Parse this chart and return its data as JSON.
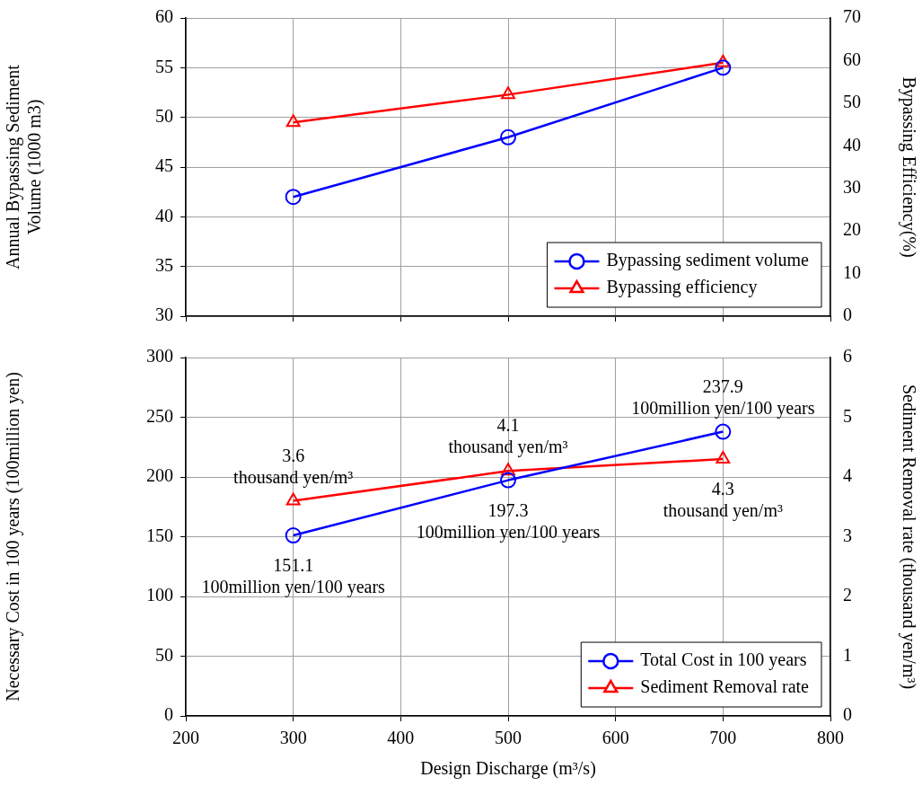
{
  "chart_data": [
    {
      "type": "line",
      "x": [
        300,
        500,
        700
      ],
      "xlim": [
        200,
        800
      ],
      "xticks": [
        200,
        300,
        400,
        500,
        600,
        700,
        800
      ],
      "tick_labels": "y",
      "ylabel": "Annual Bypassing Sediment Volume (1000 m3)",
      "y2label": "Bypassing Efficiency(%)",
      "ylim": [
        30,
        60
      ],
      "yticks": [
        30,
        35,
        40,
        45,
        50,
        55,
        60
      ],
      "y2lim": [
        0,
        70
      ],
      "y2ticks": [
        0,
        10,
        20,
        30,
        40,
        50,
        60,
        70
      ],
      "grid": true,
      "legend": "bottom right",
      "line_style": "solid",
      "series": [
        {
          "name": "Bypassing sediment volume",
          "color": "#0000ff",
          "marker": "circle",
          "values": [
            42,
            48,
            55
          ]
        },
        {
          "name": "Bypassing efficiency",
          "color": "#ff0000",
          "marker": "triangle",
          "axis": "y2",
          "values": [
            45.5,
            52,
            59.5
          ]
        }
      ]
    },
    {
      "type": "line",
      "x": [
        300,
        500,
        700
      ],
      "xlim": [
        200,
        800
      ],
      "xticks": [
        200,
        300,
        400,
        500,
        600,
        700,
        800
      ],
      "xlabel": "Design Discharge (m³/s)",
      "ylabel": "Necessary Cost in 100 years (100million yen)",
      "y2label": "Sediment Removal rate (thousand yen/m³)",
      "ylim": [
        0,
        300
      ],
      "yticks": [
        0,
        50,
        100,
        150,
        200,
        250,
        300
      ],
      "y2lim": [
        0,
        6
      ],
      "y2ticks": [
        0,
        1,
        2,
        3,
        4,
        5,
        6
      ],
      "grid": true,
      "legend": "bottom right",
      "line_style": "solid",
      "series": [
        {
          "name": "Total Cost in 100 years",
          "color": "#0000ff",
          "marker": "circle",
          "values": [
            151.1,
            197.3,
            237.9
          ],
          "value_labels": [
            "151.1\n100million yen/100 years",
            "197.3\n100million yen/100 years",
            "237.9\n100million yen/100 years"
          ]
        },
        {
          "name": "Sediment Removal rate",
          "color": "#ff0000",
          "marker": "triangle",
          "axis": "y2",
          "values": [
            3.6,
            4.1,
            4.3
          ],
          "value_labels": [
            "3.6",
            "4.1",
            "4.3"
          ]
        }
      ],
      "annotations": [
        "thousand yen/m³",
        "thousand yen/m³",
        "thousand yen/m³"
      ]
    }
  ]
}
